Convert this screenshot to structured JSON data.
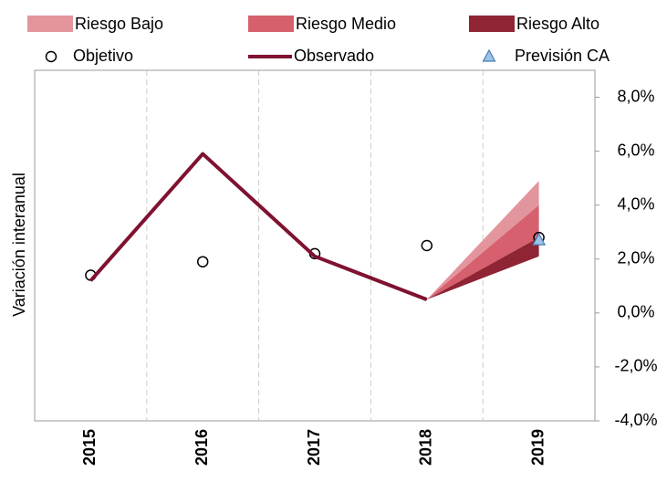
{
  "chart_data": {
    "type": "fan",
    "y_label": "Variación interanual",
    "categories": [
      "2015",
      "2016",
      "2017",
      "2018",
      "2019"
    ],
    "ylim": [
      -4,
      9
    ],
    "yticks": [
      {
        "value": 8,
        "label": "8,0%"
      },
      {
        "value": 6,
        "label": "6,0%"
      },
      {
        "value": 4,
        "label": "4,0%"
      },
      {
        "value": 2,
        "label": "2,0%"
      },
      {
        "value": 0,
        "label": "0,0%"
      },
      {
        "value": -2,
        "label": "-2,0%"
      },
      {
        "value": -4,
        "label": "-4,0%"
      }
    ],
    "bands": [
      {
        "name": "Riesgo Bajo",
        "color": "#e3959e",
        "lower": [
          null,
          null,
          null,
          0.5,
          4.0
        ],
        "upper": [
          null,
          null,
          null,
          0.5,
          4.9
        ]
      },
      {
        "name": "Riesgo Medio",
        "color": "#d6606d",
        "lower": [
          null,
          null,
          null,
          0.5,
          2.8
        ],
        "upper": [
          null,
          null,
          null,
          0.5,
          4.0
        ]
      },
      {
        "name": "Riesgo Alto",
        "color": "#8e2434",
        "lower": [
          null,
          null,
          null,
          0.5,
          2.1
        ],
        "upper": [
          null,
          null,
          null,
          0.5,
          2.8
        ]
      }
    ],
    "series": [
      {
        "name": "Objetivo",
        "kind": "marker",
        "color": "#000000",
        "values": [
          1.4,
          1.9,
          2.2,
          2.5,
          2.8
        ]
      },
      {
        "name": "Observado",
        "kind": "line",
        "color": "#7f1230",
        "values": [
          1.2,
          5.9,
          2.1,
          0.5,
          null
        ]
      },
      {
        "name": "Previsión CA",
        "kind": "triangle",
        "color": "#9dc3e6",
        "values": [
          null,
          null,
          null,
          null,
          2.7
        ]
      }
    ]
  }
}
